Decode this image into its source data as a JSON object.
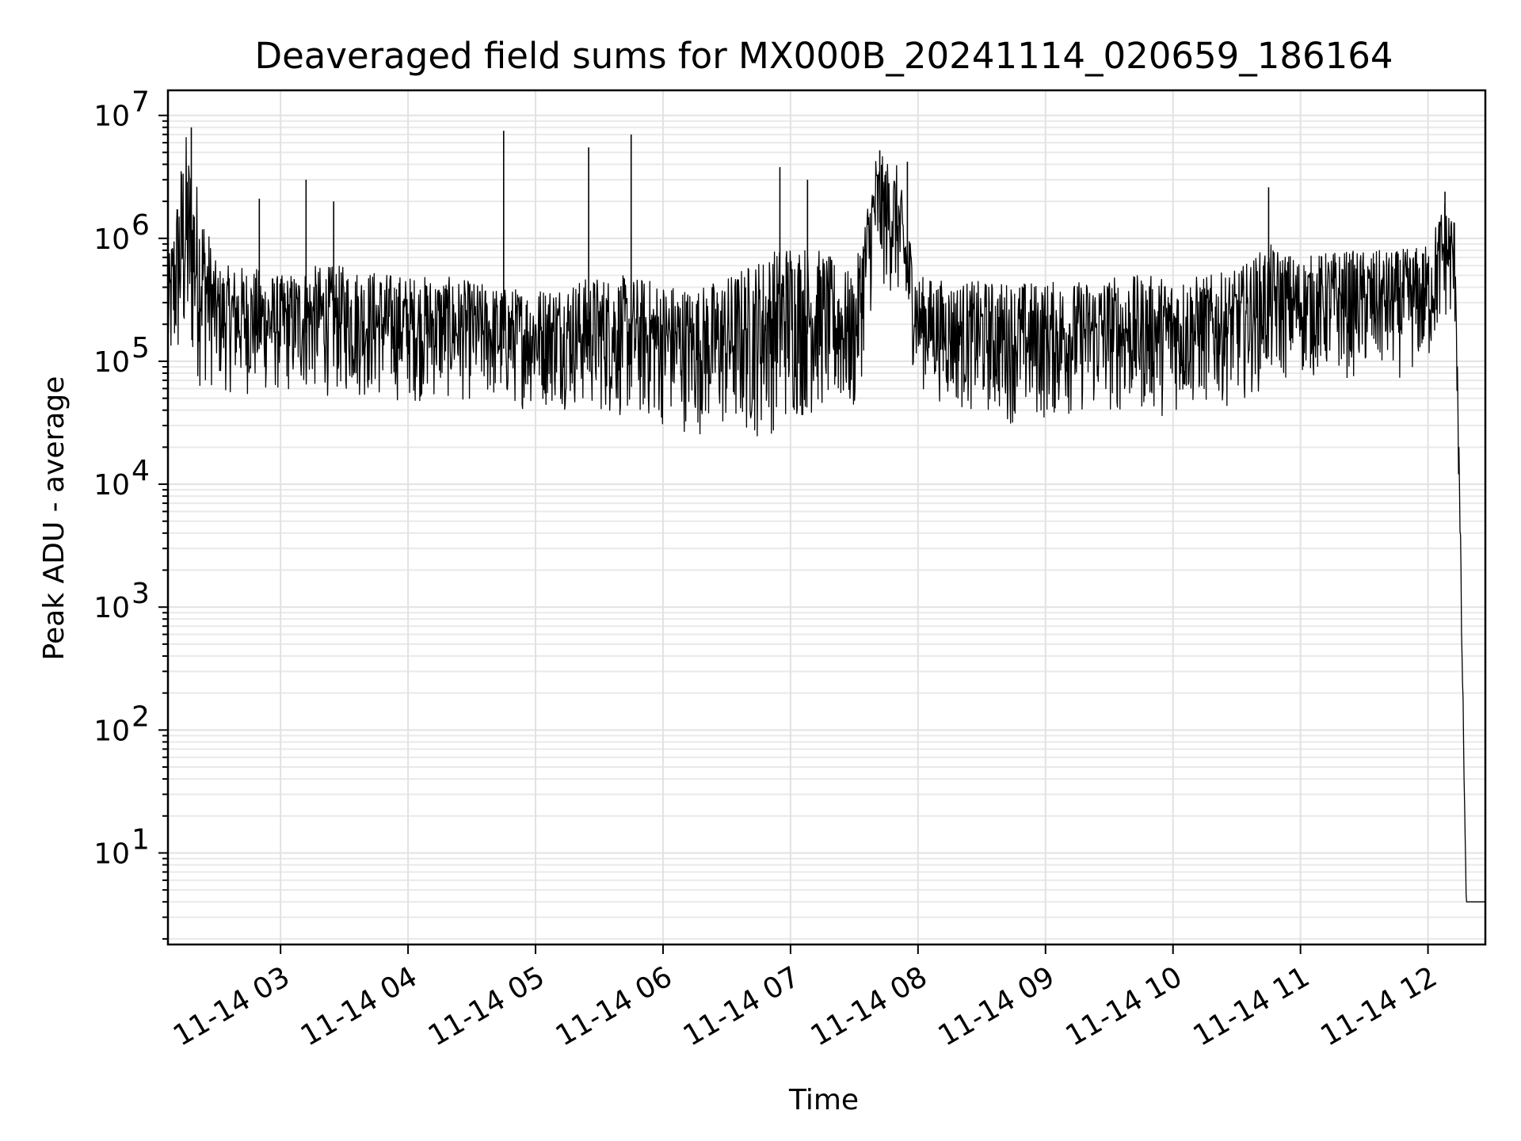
{
  "chart_data": {
    "type": "line",
    "title": "Deaveraged field sums for MX000B_20241114_020659_186164",
    "xlabel": "Time",
    "ylabel": "Peak ADU - average",
    "yscale": "log",
    "grid": true,
    "x_range": [
      "2024-11-14 02:07",
      "2024-11-14 12:27"
    ],
    "ylim": [
      1.8,
      16000000
    ],
    "x_tick_labels": [
      "11-14 03",
      "11-14 04",
      "11-14 05",
      "11-14 06",
      "11-14 07",
      "11-14 08",
      "11-14 09",
      "11-14 10",
      "11-14 11",
      "11-14 12"
    ],
    "x_tick_values": [
      "2024-11-14 03:00",
      "2024-11-14 04:00",
      "2024-11-14 05:00",
      "2024-11-14 06:00",
      "2024-11-14 07:00",
      "2024-11-14 08:00",
      "2024-11-14 09:00",
      "2024-11-14 10:00",
      "2024-11-14 11:00",
      "2024-11-14 12:00"
    ],
    "y_ticks": [
      10,
      100,
      1000,
      10000,
      100000,
      1000000,
      10000000
    ],
    "y_tick_labels": [
      {
        "base": "10",
        "exp": "1"
      },
      {
        "base": "10",
        "exp": "2"
      },
      {
        "base": "10",
        "exp": "3"
      },
      {
        "base": "10",
        "exp": "4"
      },
      {
        "base": "10",
        "exp": "5"
      },
      {
        "base": "10",
        "exp": "6"
      },
      {
        "base": "10",
        "exp": "7"
      }
    ],
    "series": [
      {
        "color": "#000000",
        "x": [
          "2024-11-14 02:07",
          "2024-11-14 02:15",
          "2024-11-14 02:30",
          "2024-11-14 02:45",
          "2024-11-14 03:00",
          "2024-11-14 03:15",
          "2024-11-14 03:30",
          "2024-11-14 03:45",
          "2024-11-14 04:00",
          "2024-11-14 04:15",
          "2024-11-14 04:30",
          "2024-11-14 04:45",
          "2024-11-14 05:00",
          "2024-11-14 05:15",
          "2024-11-14 05:30",
          "2024-11-14 05:45",
          "2024-11-14 06:00",
          "2024-11-14 06:15",
          "2024-11-14 06:30",
          "2024-11-14 06:45",
          "2024-11-14 07:00",
          "2024-11-14 07:15",
          "2024-11-14 07:30",
          "2024-11-14 07:40",
          "2024-11-14 07:50",
          "2024-11-14 08:00",
          "2024-11-14 08:15",
          "2024-11-14 08:30",
          "2024-11-14 08:45",
          "2024-11-14 09:00",
          "2024-11-14 09:15",
          "2024-11-14 09:30",
          "2024-11-14 09:45",
          "2024-11-14 10:00",
          "2024-11-14 10:15",
          "2024-11-14 10:30",
          "2024-11-14 10:45",
          "2024-11-14 11:00",
          "2024-11-14 11:15",
          "2024-11-14 11:30",
          "2024-11-14 11:45",
          "2024-11-14 12:00",
          "2024-11-14 12:08",
          "2024-11-14 12:13",
          "2024-11-14 12:18",
          "2024-11-14 12:27"
        ],
        "low": [
          60000,
          60000,
          55000,
          50000,
          50000,
          50000,
          50000,
          45000,
          45000,
          45000,
          45000,
          40000,
          40000,
          40000,
          35000,
          30000,
          28000,
          25000,
          22000,
          22000,
          28000,
          35000,
          30000,
          400000,
          300000,
          60000,
          40000,
          35000,
          30000,
          30000,
          35000,
          35000,
          35000,
          35000,
          40000,
          45000,
          60000,
          70000,
          70000,
          70000,
          70000,
          80000,
          200000,
          150000,
          4,
          4
        ],
        "high": [
          600000,
          8000000,
          600000,
          600000,
          500000,
          600000,
          600000,
          550000,
          500000,
          500000,
          450000,
          400000,
          400000,
          450000,
          500000,
          500000,
          450000,
          400000,
          500000,
          700000,
          1000000,
          800000,
          500000,
          5000000,
          4000000,
          500000,
          450000,
          450000,
          450000,
          450000,
          450000,
          500000,
          500000,
          500000,
          500000,
          550000,
          900000,
          700000,
          800000,
          800000,
          800000,
          900000,
          2200000,
          1500000,
          4,
          4
        ],
        "spikes": [
          {
            "x": "2024-11-14 02:18",
            "y": 8000000
          },
          {
            "x": "2024-11-14 02:50",
            "y": 2100000
          },
          {
            "x": "2024-11-14 03:12",
            "y": 3000000
          },
          {
            "x": "2024-11-14 03:25",
            "y": 2000000
          },
          {
            "x": "2024-11-14 04:45",
            "y": 7500000
          },
          {
            "x": "2024-11-14 05:25",
            "y": 5500000
          },
          {
            "x": "2024-11-14 05:45",
            "y": 7000000
          },
          {
            "x": "2024-11-14 06:55",
            "y": 3800000
          },
          {
            "x": "2024-11-14 07:08",
            "y": 3000000
          },
          {
            "x": "2024-11-14 07:42",
            "y": 5200000
          },
          {
            "x": "2024-11-14 07:55",
            "y": 4200000
          },
          {
            "x": "2024-11-14 10:45",
            "y": 2600000
          },
          {
            "x": "2024-11-14 12:08",
            "y": 2400000
          }
        ]
      }
    ]
  }
}
